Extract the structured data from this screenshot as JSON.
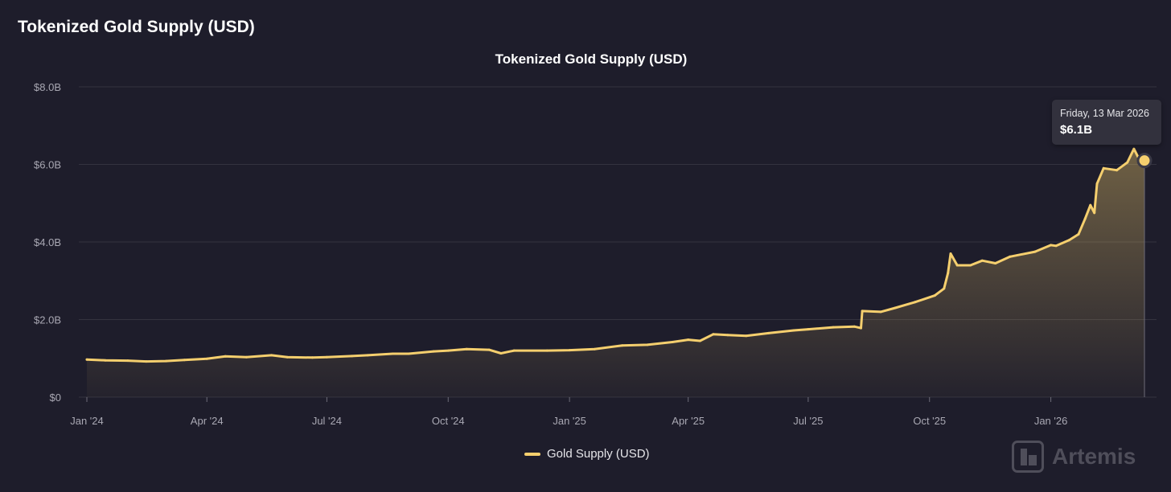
{
  "page": {
    "title": "Tokenized Gold Supply (USD)"
  },
  "chart_data": {
    "type": "area",
    "title": "Tokenized Gold Supply (USD)",
    "xlabel": "",
    "ylabel": "",
    "ylim": [
      0,
      8.0
    ],
    "y_unit": "B USD",
    "y_ticks": [
      "$0",
      "$2.0B",
      "$4.0B",
      "$6.0B",
      "$8.0B"
    ],
    "x_ticks": [
      "Jan '24",
      "Apr '24",
      "Jul '24",
      "Oct '24",
      "Jan '25",
      "Apr '25",
      "Jul '25",
      "Oct '25",
      "Jan '26"
    ],
    "grid": true,
    "legend_position": "bottom-center",
    "series": [
      {
        "name": "Gold Supply (USD)",
        "color": "#f5cf6e",
        "points": [
          [
            "2024-01-01",
            0.97
          ],
          [
            "2024-01-15",
            0.95
          ],
          [
            "2024-02-01",
            0.94
          ],
          [
            "2024-02-15",
            0.92
          ],
          [
            "2024-03-01",
            0.93
          ],
          [
            "2024-03-15",
            0.96
          ],
          [
            "2024-04-01",
            0.99
          ],
          [
            "2024-04-15",
            1.05
          ],
          [
            "2024-05-01",
            1.03
          ],
          [
            "2024-05-20",
            1.08
          ],
          [
            "2024-06-01",
            1.03
          ],
          [
            "2024-06-20",
            1.02
          ],
          [
            "2024-07-01",
            1.03
          ],
          [
            "2024-07-20",
            1.06
          ],
          [
            "2024-08-01",
            1.08
          ],
          [
            "2024-08-20",
            1.12
          ],
          [
            "2024-09-01",
            1.12
          ],
          [
            "2024-09-20",
            1.18
          ],
          [
            "2024-10-01",
            1.2
          ],
          [
            "2024-10-15",
            1.24
          ],
          [
            "2024-11-01",
            1.22
          ],
          [
            "2024-11-10",
            1.13
          ],
          [
            "2024-11-20",
            1.2
          ],
          [
            "2024-12-15",
            1.2
          ],
          [
            "2025-01-01",
            1.21
          ],
          [
            "2025-01-20",
            1.24
          ],
          [
            "2025-02-10",
            1.33
          ],
          [
            "2025-03-01",
            1.35
          ],
          [
            "2025-03-20",
            1.42
          ],
          [
            "2025-04-01",
            1.48
          ],
          [
            "2025-04-10",
            1.45
          ],
          [
            "2025-04-20",
            1.62
          ],
          [
            "2025-05-01",
            1.6
          ],
          [
            "2025-05-15",
            1.58
          ],
          [
            "2025-06-01",
            1.65
          ],
          [
            "2025-06-20",
            1.72
          ],
          [
            "2025-07-01",
            1.75
          ],
          [
            "2025-07-20",
            1.8
          ],
          [
            "2025-08-05",
            1.82
          ],
          [
            "2025-08-10",
            1.78
          ],
          [
            "2025-08-11",
            2.22
          ],
          [
            "2025-08-25",
            2.2
          ],
          [
            "2025-09-05",
            2.3
          ],
          [
            "2025-09-20",
            2.45
          ],
          [
            "2025-10-05",
            2.62
          ],
          [
            "2025-10-12",
            2.8
          ],
          [
            "2025-10-15",
            3.2
          ],
          [
            "2025-10-17",
            3.7
          ],
          [
            "2025-10-22",
            3.4
          ],
          [
            "2025-11-01",
            3.4
          ],
          [
            "2025-11-10",
            3.52
          ],
          [
            "2025-11-20",
            3.45
          ],
          [
            "2025-12-01",
            3.62
          ],
          [
            "2025-12-20",
            3.75
          ],
          [
            "2026-01-01",
            3.92
          ],
          [
            "2026-01-05",
            3.9
          ],
          [
            "2026-01-15",
            4.05
          ],
          [
            "2026-01-22",
            4.2
          ],
          [
            "2026-01-27",
            4.6
          ],
          [
            "2026-01-31",
            4.95
          ],
          [
            "2026-02-03",
            4.75
          ],
          [
            "2026-02-05",
            5.5
          ],
          [
            "2026-02-10",
            5.9
          ],
          [
            "2026-02-20",
            5.85
          ],
          [
            "2026-02-28",
            6.05
          ],
          [
            "2026-03-05",
            6.4
          ],
          [
            "2026-03-08",
            6.2
          ],
          [
            "2026-03-13",
            6.1
          ]
        ]
      }
    ],
    "highlight": {
      "date_label": "Friday, 13 Mar 2026",
      "value_label": "$6.1B",
      "date": "2026-03-13",
      "value": 6.1
    }
  },
  "legend": {
    "label": "Gold Supply (USD)"
  },
  "watermark": {
    "text": "Artemis",
    "icon": "artemis-logo-icon"
  }
}
